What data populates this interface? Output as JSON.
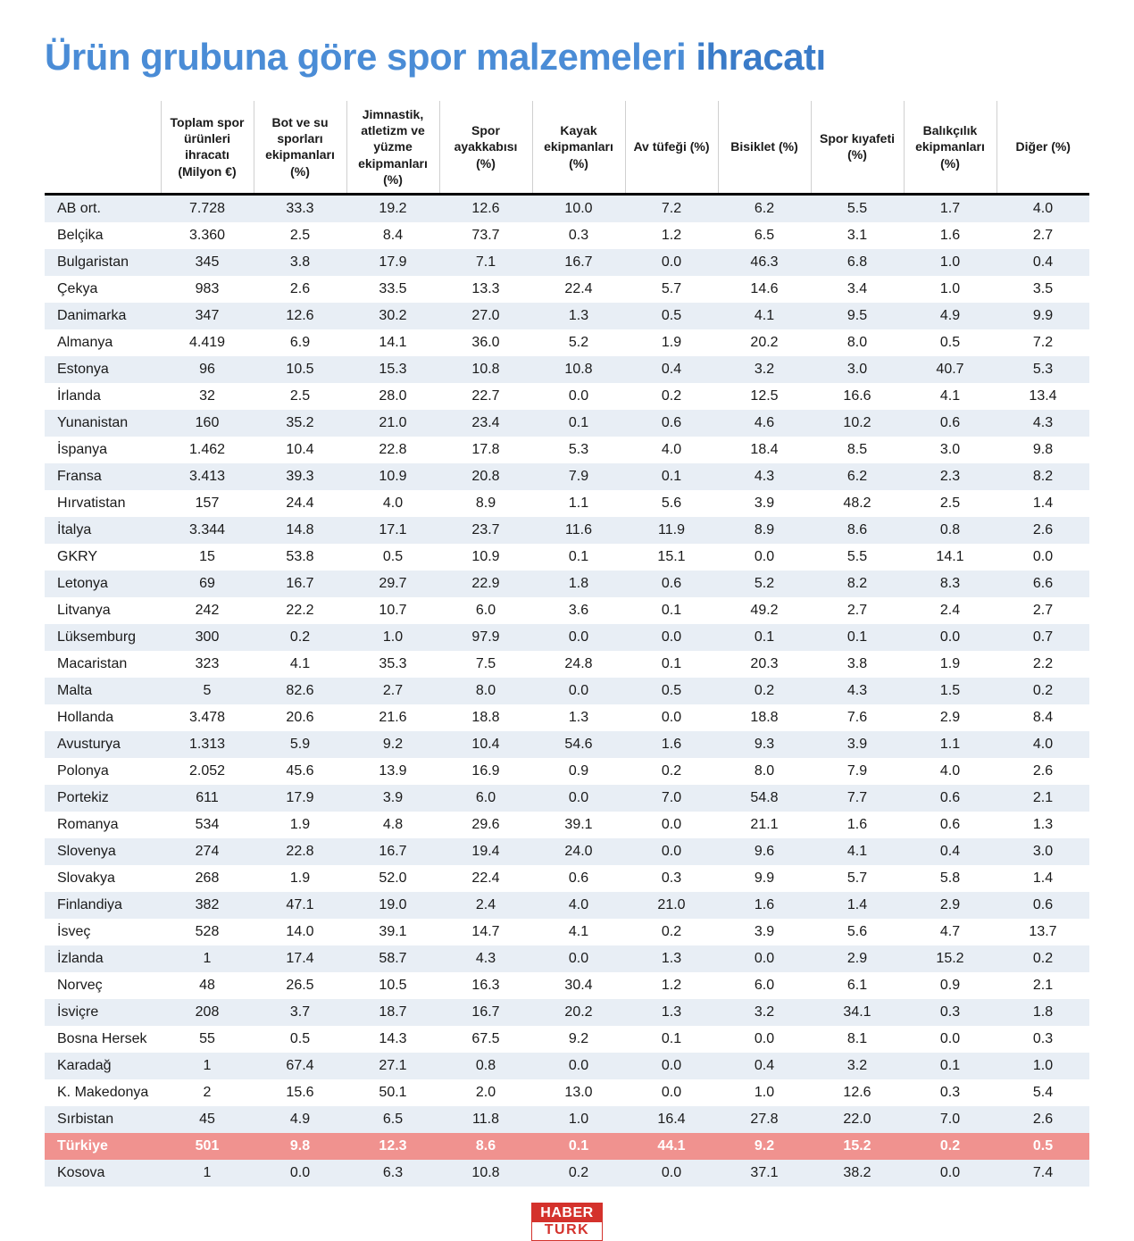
{
  "title_main": "Ürün grubuna göre spor malzemeleri ",
  "title_accent": "ihracatı",
  "columns": [
    "",
    "Toplam spor ürünleri ihracatı (Milyon €)",
    "Bot ve su sporları ekipmanları (%)",
    "Jimnastik, atletizm ve yüzme ekipmanları (%)",
    "Spor ayakkabısı (%)",
    "Kayak ekipmanları (%)",
    "Av tüfeği (%)",
    "Bisiklet (%)",
    "Spor kıyafeti (%)",
    "Balıkçılık ekipmanları (%)",
    "Diğer (%)"
  ],
  "rows": [
    {
      "name": "AB ort.",
      "v": [
        "7.728",
        "33.3",
        "19.2",
        "12.6",
        "10.0",
        "7.2",
        "6.2",
        "5.5",
        "1.7",
        "4.0"
      ],
      "hl": false
    },
    {
      "name": "Belçika",
      "v": [
        "3.360",
        "2.5",
        "8.4",
        "73.7",
        "0.3",
        "1.2",
        "6.5",
        "3.1",
        "1.6",
        "2.7"
      ],
      "hl": false
    },
    {
      "name": "Bulgaristan",
      "v": [
        "345",
        "3.8",
        "17.9",
        "7.1",
        "16.7",
        "0.0",
        "46.3",
        "6.8",
        "1.0",
        "0.4"
      ],
      "hl": false
    },
    {
      "name": "Çekya",
      "v": [
        "983",
        "2.6",
        "33.5",
        "13.3",
        "22.4",
        "5.7",
        "14.6",
        "3.4",
        "1.0",
        "3.5"
      ],
      "hl": false
    },
    {
      "name": "Danimarka",
      "v": [
        "347",
        "12.6",
        "30.2",
        "27.0",
        "1.3",
        "0.5",
        "4.1",
        "9.5",
        "4.9",
        "9.9"
      ],
      "hl": false
    },
    {
      "name": "Almanya",
      "v": [
        "4.419",
        "6.9",
        "14.1",
        "36.0",
        "5.2",
        "1.9",
        "20.2",
        "8.0",
        "0.5",
        "7.2"
      ],
      "hl": false
    },
    {
      "name": "Estonya",
      "v": [
        "96",
        "10.5",
        "15.3",
        "10.8",
        "10.8",
        "0.4",
        "3.2",
        "3.0",
        "40.7",
        "5.3"
      ],
      "hl": false
    },
    {
      "name": "İrlanda",
      "v": [
        "32",
        "2.5",
        "28.0",
        "22.7",
        "0.0",
        "0.2",
        "12.5",
        "16.6",
        "4.1",
        "13.4"
      ],
      "hl": false
    },
    {
      "name": "Yunanistan",
      "v": [
        "160",
        "35.2",
        "21.0",
        "23.4",
        "0.1",
        "0.6",
        "4.6",
        "10.2",
        "0.6",
        "4.3"
      ],
      "hl": false
    },
    {
      "name": "İspanya",
      "v": [
        "1.462",
        "10.4",
        "22.8",
        "17.8",
        "5.3",
        "4.0",
        "18.4",
        "8.5",
        "3.0",
        "9.8"
      ],
      "hl": false
    },
    {
      "name": "Fransa",
      "v": [
        "3.413",
        "39.3",
        "10.9",
        "20.8",
        "7.9",
        "0.1",
        "4.3",
        "6.2",
        "2.3",
        "8.2"
      ],
      "hl": false
    },
    {
      "name": "Hırvatistan",
      "v": [
        "157",
        "24.4",
        "4.0",
        "8.9",
        "1.1",
        "5.6",
        "3.9",
        "48.2",
        "2.5",
        "1.4"
      ],
      "hl": false
    },
    {
      "name": "İtalya",
      "v": [
        "3.344",
        "14.8",
        "17.1",
        "23.7",
        "11.6",
        "11.9",
        "8.9",
        "8.6",
        "0.8",
        "2.6"
      ],
      "hl": false
    },
    {
      "name": "GKRY",
      "v": [
        "15",
        "53.8",
        "0.5",
        "10.9",
        "0.1",
        "15.1",
        "0.0",
        "5.5",
        "14.1",
        "0.0"
      ],
      "hl": false
    },
    {
      "name": "Letonya",
      "v": [
        "69",
        "16.7",
        "29.7",
        "22.9",
        "1.8",
        "0.6",
        "5.2",
        "8.2",
        "8.3",
        "6.6"
      ],
      "hl": false
    },
    {
      "name": "Litvanya",
      "v": [
        "242",
        "22.2",
        "10.7",
        "6.0",
        "3.6",
        "0.1",
        "49.2",
        "2.7",
        "2.4",
        "2.7"
      ],
      "hl": false
    },
    {
      "name": "Lüksemburg",
      "v": [
        "300",
        "0.2",
        "1.0",
        "97.9",
        "0.0",
        "0.0",
        "0.1",
        "0.1",
        "0.0",
        "0.7"
      ],
      "hl": false
    },
    {
      "name": "Macaristan",
      "v": [
        "323",
        "4.1",
        "35.3",
        "7.5",
        "24.8",
        "0.1",
        "20.3",
        "3.8",
        "1.9",
        "2.2"
      ],
      "hl": false
    },
    {
      "name": "Malta",
      "v": [
        "5",
        "82.6",
        "2.7",
        "8.0",
        "0.0",
        "0.5",
        "0.2",
        "4.3",
        "1.5",
        "0.2"
      ],
      "hl": false
    },
    {
      "name": "Hollanda",
      "v": [
        "3.478",
        "20.6",
        "21.6",
        "18.8",
        "1.3",
        "0.0",
        "18.8",
        "7.6",
        "2.9",
        "8.4"
      ],
      "hl": false
    },
    {
      "name": "Avusturya",
      "v": [
        "1.313",
        "5.9",
        "9.2",
        "10.4",
        "54.6",
        "1.6",
        "9.3",
        "3.9",
        "1.1",
        "4.0"
      ],
      "hl": false
    },
    {
      "name": "Polonya",
      "v": [
        "2.052",
        "45.6",
        "13.9",
        "16.9",
        "0.9",
        "0.2",
        "8.0",
        "7.9",
        "4.0",
        "2.6"
      ],
      "hl": false
    },
    {
      "name": "Portekiz",
      "v": [
        "611",
        "17.9",
        "3.9",
        "6.0",
        "0.0",
        "7.0",
        "54.8",
        "7.7",
        "0.6",
        "2.1"
      ],
      "hl": false
    },
    {
      "name": "Romanya",
      "v": [
        "534",
        "1.9",
        "4.8",
        "29.6",
        "39.1",
        "0.0",
        "21.1",
        "1.6",
        "0.6",
        "1.3"
      ],
      "hl": false
    },
    {
      "name": "Slovenya",
      "v": [
        "274",
        "22.8",
        "16.7",
        "19.4",
        "24.0",
        "0.0",
        "9.6",
        "4.1",
        "0.4",
        "3.0"
      ],
      "hl": false
    },
    {
      "name": "Slovakya",
      "v": [
        "268",
        "1.9",
        "52.0",
        "22.4",
        "0.6",
        "0.3",
        "9.9",
        "5.7",
        "5.8",
        "1.4"
      ],
      "hl": false
    },
    {
      "name": "Finlandiya",
      "v": [
        "382",
        "47.1",
        "19.0",
        "2.4",
        "4.0",
        "21.0",
        "1.6",
        "1.4",
        "2.9",
        "0.6"
      ],
      "hl": false
    },
    {
      "name": "İsveç",
      "v": [
        "528",
        "14.0",
        "39.1",
        "14.7",
        "4.1",
        "0.2",
        "3.9",
        "5.6",
        "4.7",
        "13.7"
      ],
      "hl": false
    },
    {
      "name": "İzlanda",
      "v": [
        "1",
        "17.4",
        "58.7",
        "4.3",
        "0.0",
        "1.3",
        "0.0",
        "2.9",
        "15.2",
        "0.2"
      ],
      "hl": false
    },
    {
      "name": "Norveç",
      "v": [
        "48",
        "26.5",
        "10.5",
        "16.3",
        "30.4",
        "1.2",
        "6.0",
        "6.1",
        "0.9",
        "2.1"
      ],
      "hl": false
    },
    {
      "name": "İsviçre",
      "v": [
        "208",
        "3.7",
        "18.7",
        "16.7",
        "20.2",
        "1.3",
        "3.2",
        "34.1",
        "0.3",
        "1.8"
      ],
      "hl": false
    },
    {
      "name": "Bosna Hersek",
      "v": [
        "55",
        "0.5",
        "14.3",
        "67.5",
        "9.2",
        "0.1",
        "0.0",
        "8.1",
        "0.0",
        "0.3"
      ],
      "hl": false
    },
    {
      "name": "Karadağ",
      "v": [
        "1",
        "67.4",
        "27.1",
        "0.8",
        "0.0",
        "0.0",
        "0.4",
        "3.2",
        "0.1",
        "1.0"
      ],
      "hl": false
    },
    {
      "name": "K. Makedonya",
      "v": [
        "2",
        "15.6",
        "50.1",
        "2.0",
        "13.0",
        "0.0",
        "1.0",
        "12.6",
        "0.3",
        "5.4"
      ],
      "hl": false
    },
    {
      "name": "Sırbistan",
      "v": [
        "45",
        "4.9",
        "6.5",
        "11.8",
        "1.0",
        "16.4",
        "27.8",
        "22.0",
        "7.0",
        "2.6"
      ],
      "hl": false
    },
    {
      "name": "Türkiye",
      "v": [
        "501",
        "9.8",
        "12.3",
        "8.6",
        "0.1",
        "44.1",
        "9.2",
        "15.2",
        "0.2",
        "0.5"
      ],
      "hl": true
    },
    {
      "name": "Kosova",
      "v": [
        "1",
        "0.0",
        "6.3",
        "10.8",
        "0.2",
        "0.0",
        "37.1",
        "38.2",
        "0.0",
        "7.4"
      ],
      "hl": false
    }
  ],
  "logo": {
    "top": "HABER",
    "bottom": "TURK"
  },
  "colors": {
    "title": "#4a8cd6",
    "even_row": "#e8eef5",
    "highlight_row": "#f0928f",
    "header_border": "#000000",
    "logo_red": "#d4322c"
  }
}
